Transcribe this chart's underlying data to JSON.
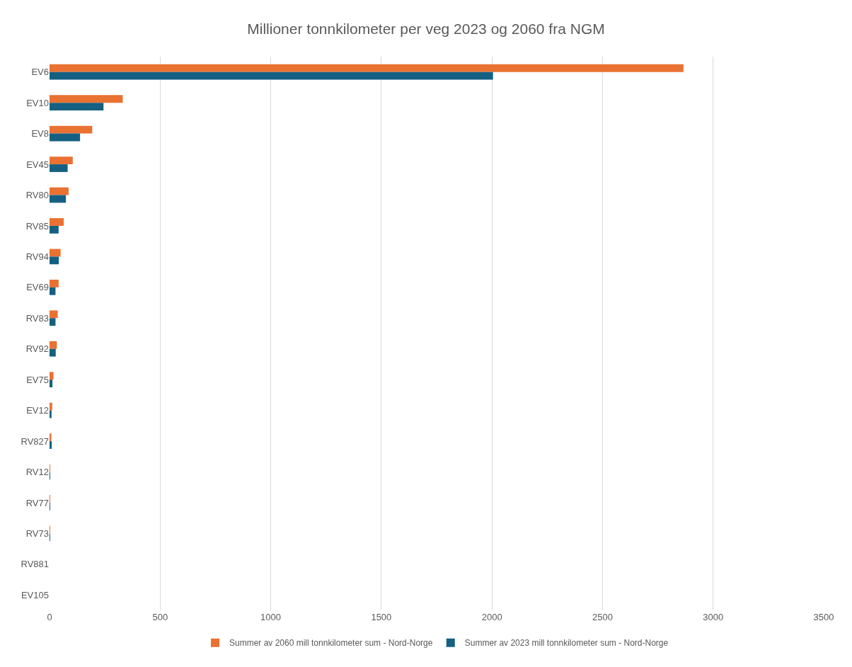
{
  "chart_data": {
    "type": "bar",
    "orientation": "horizontal",
    "title": "Millioner tonnkilometer per veg 2023 og 2060 fra NGM",
    "categories": [
      "EV6",
      "EV10",
      "EV8",
      "EV45",
      "RV80",
      "RV85",
      "RV94",
      "EV69",
      "RV83",
      "RV92",
      "EV75",
      "EV12",
      "RV827",
      "RV12",
      "RV77",
      "RV73",
      "RV881",
      "EV105"
    ],
    "series": [
      {
        "name": "Summer av 2060 mill tonnkilometer sum - Nord-Norge",
        "color": "#e97132",
        "values": [
          2866,
          331,
          193,
          105,
          86,
          64,
          50,
          41,
          37,
          33,
          18,
          12,
          8,
          3,
          2,
          2,
          0,
          0
        ]
      },
      {
        "name": "Summer av 2023 mill tonnkilometer sum - Nord-Norge",
        "color": "#156082",
        "values": [
          2005,
          244,
          138,
          82,
          74,
          41,
          42,
          27,
          27,
          28,
          13,
          9,
          10,
          3,
          2,
          2,
          0,
          0
        ]
      }
    ],
    "xlim": [
      0,
      3500
    ],
    "xticks": [
      0,
      500,
      1000,
      1500,
      2000,
      2500,
      3000,
      3500
    ],
    "grid": "x",
    "legend": "bottom"
  }
}
